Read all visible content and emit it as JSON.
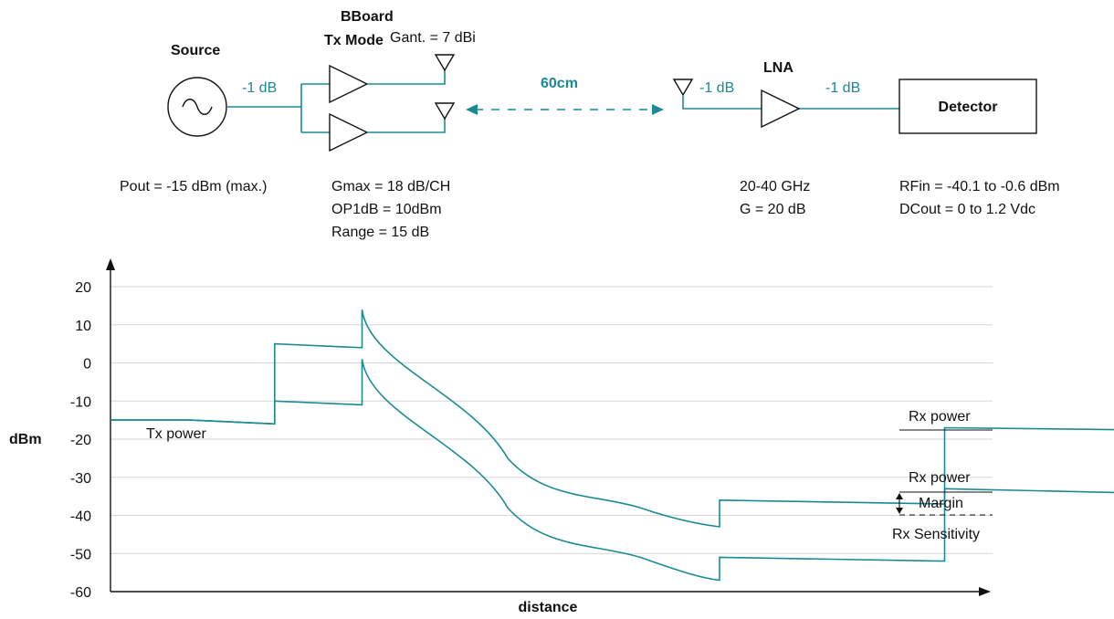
{
  "diagram": {
    "source": {
      "title": "Source",
      "spec": "Pout = -15 dBm (max.)"
    },
    "loss_1": "-1 dB",
    "bboard": {
      "title_line1": "BBoard",
      "title_line2": "Tx Mode",
      "antenna_gain": "Gant. = 7 dBi",
      "spec_line1": "Gmax = 18 dB/CH",
      "spec_line2": "OP1dB = 10dBm",
      "spec_line3": "Range = 15 dB"
    },
    "distance": "60cm",
    "loss_2": "-1 dB",
    "lna": {
      "title": "LNA",
      "spec_line1": "20-40 GHz",
      "spec_line2": "G = 20 dB"
    },
    "loss_3": "-1 dB",
    "detector": {
      "title": "Detector",
      "spec_line1": "RFin = -40.1 to -0.6 dBm",
      "spec_line2": "DCout = 0 to 1.2 Vdc"
    },
    "colors": {
      "accent": "#1a8a94",
      "line": "#111111",
      "grid": "#d6d6d6"
    }
  },
  "chart_data": {
    "type": "line",
    "ylabel": "dBm",
    "xlabel": "distance",
    "ylim": [
      -60,
      20
    ],
    "yticks": [
      20,
      10,
      0,
      -10,
      -20,
      -30,
      -40,
      -50,
      -60
    ],
    "grid": true,
    "annotations": {
      "tx_power": "Tx power",
      "rx_power_upper": "Rx power",
      "rx_power_lower": "Rx power",
      "margin": "Margin",
      "rx_sensitivity": "Rx Sensitivity"
    },
    "rx_sensitivity_level": -40,
    "series": [
      {
        "values": [
          [
            0,
            -15
          ],
          [
            30,
            -15
          ],
          [
            62,
            -16
          ],
          [
            62,
            5
          ],
          [
            95,
            4
          ],
          [
            95,
            14
          ],
          [
            150,
            -25
          ],
          [
            200,
            -38
          ],
          [
            230,
            -43
          ],
          [
            230,
            -36
          ],
          [
            315,
            -37
          ],
          [
            315,
            -17
          ],
          [
            380,
            -17.5
          ],
          [
            420,
            -17.5
          ]
        ]
      },
      {
        "values": [
          [
            0,
            -15
          ],
          [
            30,
            -15
          ],
          [
            62,
            -16
          ],
          [
            62,
            -10
          ],
          [
            95,
            -11
          ],
          [
            95,
            1
          ],
          [
            150,
            -38
          ],
          [
            200,
            -51
          ],
          [
            230,
            -57
          ],
          [
            230,
            -51
          ],
          [
            315,
            -52
          ],
          [
            315,
            -33
          ],
          [
            380,
            -34
          ],
          [
            420,
            -34
          ]
        ]
      }
    ]
  }
}
